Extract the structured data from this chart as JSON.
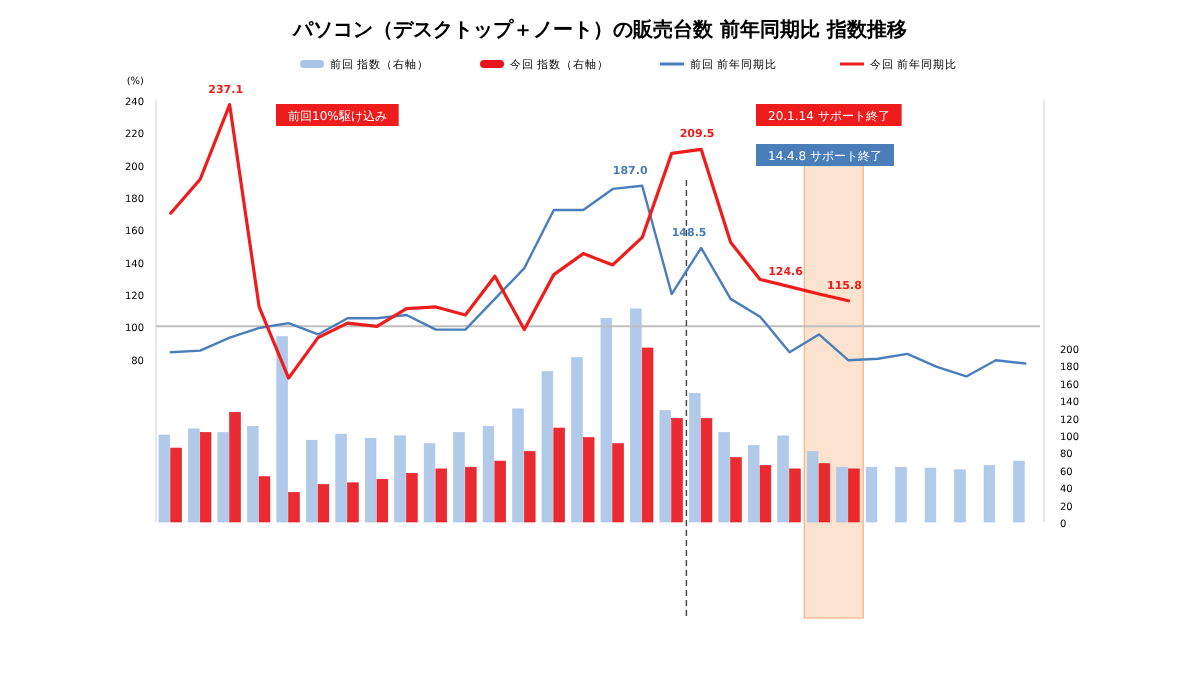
{
  "chart_data": {
    "type": "bar",
    "title": "パソコン（デスクトップ＋ノート）の販売台数 前年同期比 指数推移",
    "ylabel": "(%)",
    "categories": [
      null,
      null,
      null,
      null,
      null,
      null,
      null,
      null,
      null,
      null,
      null,
      null,
      null,
      null,
      null,
      null,
      null,
      null,
      null,
      null,
      null,
      null,
      null,
      null,
      null,
      null,
      null,
      null,
      null,
      null
    ],
    "series": [
      {
        "name": "前回 指数（右軸）",
        "axis": "y2",
        "color": "#a9c4e8",
        "values": [
          100,
          107,
          103,
          110,
          213,
          94,
          101,
          96,
          99,
          90,
          103,
          110,
          130,
          173,
          189,
          234,
          245,
          128,
          148,
          103,
          88,
          99,
          81,
          63,
          63,
          63,
          62,
          60,
          65,
          70
        ]
      },
      {
        "name": "今回 指数（右軸）",
        "axis": "y2",
        "color": "#e8141b",
        "values": [
          85,
          103,
          126,
          52,
          34,
          43,
          45,
          49,
          56,
          61,
          63,
          70,
          81,
          108,
          97,
          90,
          200,
          119,
          119,
          74,
          65,
          61,
          67,
          61,
          null,
          null,
          null,
          null,
          null,
          null
        ]
      },
      {
        "name": "前回 前年同期比",
        "type": "line",
        "color": "#4a7ebb",
        "values": [
          84,
          85,
          93,
          99,
          102,
          95,
          105,
          105,
          107,
          98,
          98,
          117,
          136,
          172,
          172,
          185,
          187.0,
          120,
          148.5,
          117,
          106,
          84,
          95,
          79,
          80,
          83,
          75,
          69,
          79,
          77
        ],
        "value_labels": [
          null,
          null,
          null,
          null,
          null,
          null,
          null,
          null,
          null,
          null,
          null,
          null,
          null,
          null,
          null,
          null,
          "187.0",
          null,
          "148.5",
          null,
          null,
          null,
          null,
          null,
          null,
          null,
          null,
          null,
          null,
          null
        ]
      },
      {
        "name": "今回 前年同期比",
        "type": "line",
        "color": "#ee1c1c",
        "values": [
          170,
          191,
          237.1,
          112,
          68,
          93,
          102,
          100,
          111,
          112,
          107,
          131,
          98,
          132,
          145,
          138,
          155,
          207,
          209.5,
          152,
          129,
          124.6,
          120,
          115.8,
          null,
          null,
          null,
          null,
          null,
          null
        ],
        "value_labels": [
          null,
          null,
          "237.1",
          null,
          null,
          null,
          null,
          null,
          null,
          null,
          null,
          null,
          null,
          null,
          null,
          null,
          null,
          null,
          "209.5",
          null,
          null,
          "124.6",
          null,
          "115.8",
          null,
          null,
          null,
          null,
          null,
          null
        ]
      }
    ],
    "ylim": [
      -21,
      240
    ],
    "yticks": [
      80,
      100,
      120,
      140,
      160,
      180,
      200,
      220,
      240
    ],
    "y2lim": [
      0,
      485
    ],
    "y2ticks": [
      0,
      20,
      40,
      60,
      80,
      100,
      120,
      140,
      160,
      180,
      200
    ],
    "tick_labels": "y",
    "legend": "top",
    "ref_lines": [
      {
        "axis": "y",
        "value": 100,
        "color": "#bfbfbf"
      }
    ],
    "annotations": [
      "前回10%駆け込み",
      "20.1.14 サポート終了",
      "14.4.8 サポート終了"
    ]
  }
}
